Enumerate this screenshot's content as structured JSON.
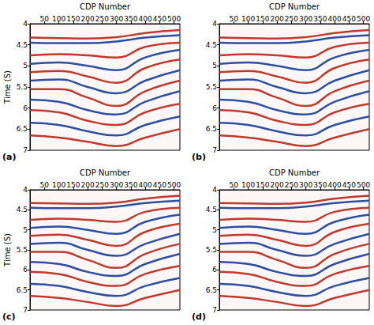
{
  "chart_data": [
    {
      "type": "line",
      "title": "(a)",
      "xlabel": "CDP Number",
      "ylabel": "Time (S)",
      "x": [
        1,
        100,
        200,
        300,
        400,
        520
      ],
      "xlim": [
        0,
        520
      ],
      "xticks": [
        50,
        100,
        150,
        200,
        250,
        300,
        350,
        400,
        450,
        500
      ],
      "ylim": [
        4,
        7
      ],
      "yticks": [
        4,
        4.5,
        5,
        5.5,
        6,
        6.5,
        7
      ],
      "grid": false,
      "series": [
        {
          "color": "#c0392b",
          "values": [
            4.33,
            4.34,
            4.35,
            4.32,
            4.22,
            4.15
          ]
        },
        {
          "color": "#2c4fa3",
          "values": [
            4.45,
            4.46,
            4.46,
            4.42,
            4.33,
            4.27
          ]
        },
        {
          "color": "#c0392b",
          "values": [
            4.75,
            4.72,
            4.75,
            4.8,
            4.55,
            4.45
          ]
        },
        {
          "color": "#2c4fa3",
          "values": [
            4.95,
            4.92,
            5.0,
            5.1,
            4.8,
            4.62
          ]
        },
        {
          "color": "#c0392b",
          "values": [
            5.15,
            5.12,
            5.25,
            5.4,
            5.05,
            4.85
          ]
        },
        {
          "color": "#2c4fa3",
          "values": [
            5.35,
            5.32,
            5.5,
            5.65,
            5.35,
            5.1
          ]
        },
        {
          "color": "#c0392b",
          "values": [
            5.55,
            5.55,
            5.75,
            5.95,
            5.6,
            5.35
          ]
        },
        {
          "color": "#2c4fa3",
          "values": [
            5.8,
            5.85,
            6.05,
            6.15,
            5.85,
            5.6
          ]
        },
        {
          "color": "#c0392b",
          "values": [
            6.05,
            6.1,
            6.3,
            6.4,
            6.1,
            5.9
          ]
        },
        {
          "color": "#2c4fa3",
          "values": [
            6.35,
            6.4,
            6.55,
            6.65,
            6.4,
            6.2
          ]
        },
        {
          "color": "#c0392b",
          "values": [
            6.65,
            6.7,
            6.8,
            6.9,
            6.7,
            6.5
          ]
        }
      ]
    },
    {
      "type": "line",
      "title": "(b)",
      "xlabel": "CDP Number",
      "x": [
        1,
        100,
        200,
        300,
        400,
        520
      ],
      "xlim": [
        0,
        520
      ],
      "xticks": [
        50,
        100,
        150,
        200,
        250,
        300,
        350,
        400,
        450,
        500
      ],
      "ylim": [
        4,
        7
      ],
      "yticks": [
        4,
        4.5,
        5,
        5.5,
        6,
        6.5,
        7
      ],
      "grid": false,
      "series": [
        {
          "color": "#c0392b",
          "values": [
            4.33,
            4.34,
            4.35,
            4.32,
            4.22,
            4.15
          ]
        },
        {
          "color": "#2c4fa3",
          "values": [
            4.45,
            4.46,
            4.46,
            4.42,
            4.33,
            4.27
          ]
        },
        {
          "color": "#c0392b",
          "values": [
            4.75,
            4.72,
            4.75,
            4.8,
            4.55,
            4.45
          ]
        },
        {
          "color": "#2c4fa3",
          "values": [
            4.95,
            4.92,
            5.0,
            5.1,
            4.8,
            4.62
          ]
        },
        {
          "color": "#c0392b",
          "values": [
            5.15,
            5.12,
            5.25,
            5.4,
            5.05,
            4.85
          ]
        },
        {
          "color": "#2c4fa3",
          "values": [
            5.35,
            5.32,
            5.5,
            5.65,
            5.35,
            5.1
          ]
        },
        {
          "color": "#c0392b",
          "values": [
            5.55,
            5.55,
            5.75,
            5.95,
            5.6,
            5.35
          ]
        },
        {
          "color": "#2c4fa3",
          "values": [
            5.8,
            5.85,
            6.05,
            6.15,
            5.85,
            5.6
          ]
        },
        {
          "color": "#c0392b",
          "values": [
            6.05,
            6.1,
            6.3,
            6.4,
            6.1,
            5.9
          ]
        },
        {
          "color": "#2c4fa3",
          "values": [
            6.35,
            6.4,
            6.55,
            6.65,
            6.4,
            6.2
          ]
        },
        {
          "color": "#c0392b",
          "values": [
            6.65,
            6.7,
            6.8,
            6.9,
            6.7,
            6.5
          ]
        }
      ]
    },
    {
      "type": "line",
      "title": "(c)",
      "xlabel": "CDP Number",
      "ylabel": "Time (S)",
      "x": [
        1,
        100,
        200,
        300,
        400,
        520
      ],
      "xlim": [
        0,
        520
      ],
      "xticks": [
        50,
        100,
        150,
        200,
        250,
        300,
        350,
        400,
        450,
        500
      ],
      "ylim": [
        4,
        7
      ],
      "yticks": [
        4,
        4.5,
        5,
        5.5,
        6,
        6.5,
        7
      ],
      "grid": false,
      "series": [
        {
          "color": "#c0392b",
          "values": [
            4.33,
            4.34,
            4.35,
            4.32,
            4.22,
            4.15
          ]
        },
        {
          "color": "#2c4fa3",
          "values": [
            4.45,
            4.46,
            4.46,
            4.42,
            4.33,
            4.27
          ]
        },
        {
          "color": "#c0392b",
          "values": [
            4.75,
            4.72,
            4.75,
            4.8,
            4.55,
            4.45
          ]
        },
        {
          "color": "#2c4fa3",
          "values": [
            4.95,
            4.92,
            5.0,
            5.1,
            4.8,
            4.62
          ]
        },
        {
          "color": "#c0392b",
          "values": [
            5.15,
            5.12,
            5.25,
            5.4,
            5.05,
            4.85
          ]
        },
        {
          "color": "#2c4fa3",
          "values": [
            5.35,
            5.32,
            5.5,
            5.65,
            5.35,
            5.1
          ]
        },
        {
          "color": "#c0392b",
          "values": [
            5.55,
            5.55,
            5.75,
            5.95,
            5.6,
            5.35
          ]
        },
        {
          "color": "#2c4fa3",
          "values": [
            5.8,
            5.85,
            6.05,
            6.15,
            5.85,
            5.6
          ]
        },
        {
          "color": "#c0392b",
          "values": [
            6.05,
            6.1,
            6.3,
            6.4,
            6.1,
            5.9
          ]
        },
        {
          "color": "#2c4fa3",
          "values": [
            6.35,
            6.4,
            6.55,
            6.65,
            6.4,
            6.2
          ]
        },
        {
          "color": "#c0392b",
          "values": [
            6.65,
            6.7,
            6.8,
            6.9,
            6.7,
            6.5
          ]
        }
      ]
    },
    {
      "type": "line",
      "title": "(d)",
      "xlabel": "CDP Number",
      "x": [
        1,
        100,
        200,
        300,
        400,
        520
      ],
      "xlim": [
        0,
        520
      ],
      "xticks": [
        50,
        100,
        150,
        200,
        250,
        300,
        350,
        400,
        450,
        500
      ],
      "ylim": [
        4,
        7
      ],
      "yticks": [
        4,
        4.5,
        5,
        5.5,
        6,
        6.5,
        7
      ],
      "grid": false,
      "series": [
        {
          "color": "#c0392b",
          "values": [
            4.33,
            4.34,
            4.35,
            4.32,
            4.22,
            4.15
          ]
        },
        {
          "color": "#2c4fa3",
          "values": [
            4.45,
            4.46,
            4.46,
            4.42,
            4.33,
            4.27
          ]
        },
        {
          "color": "#c0392b",
          "values": [
            4.75,
            4.72,
            4.75,
            4.8,
            4.55,
            4.45
          ]
        },
        {
          "color": "#2c4fa3",
          "values": [
            4.95,
            4.92,
            5.0,
            5.1,
            4.8,
            4.62
          ]
        },
        {
          "color": "#c0392b",
          "values": [
            5.15,
            5.12,
            5.25,
            5.4,
            5.05,
            4.85
          ]
        },
        {
          "color": "#2c4fa3",
          "values": [
            5.35,
            5.32,
            5.5,
            5.65,
            5.35,
            5.1
          ]
        },
        {
          "color": "#c0392b",
          "values": [
            5.55,
            5.55,
            5.75,
            5.95,
            5.6,
            5.35
          ]
        },
        {
          "color": "#2c4fa3",
          "values": [
            5.8,
            5.85,
            6.05,
            6.15,
            5.85,
            5.6
          ]
        },
        {
          "color": "#c0392b",
          "values": [
            6.05,
            6.1,
            6.3,
            6.4,
            6.1,
            5.9
          ]
        },
        {
          "color": "#2c4fa3",
          "values": [
            6.35,
            6.4,
            6.55,
            6.65,
            6.4,
            6.2
          ]
        },
        {
          "color": "#c0392b",
          "values": [
            6.65,
            6.7,
            6.8,
            6.9,
            6.7,
            6.5
          ]
        }
      ]
    }
  ]
}
